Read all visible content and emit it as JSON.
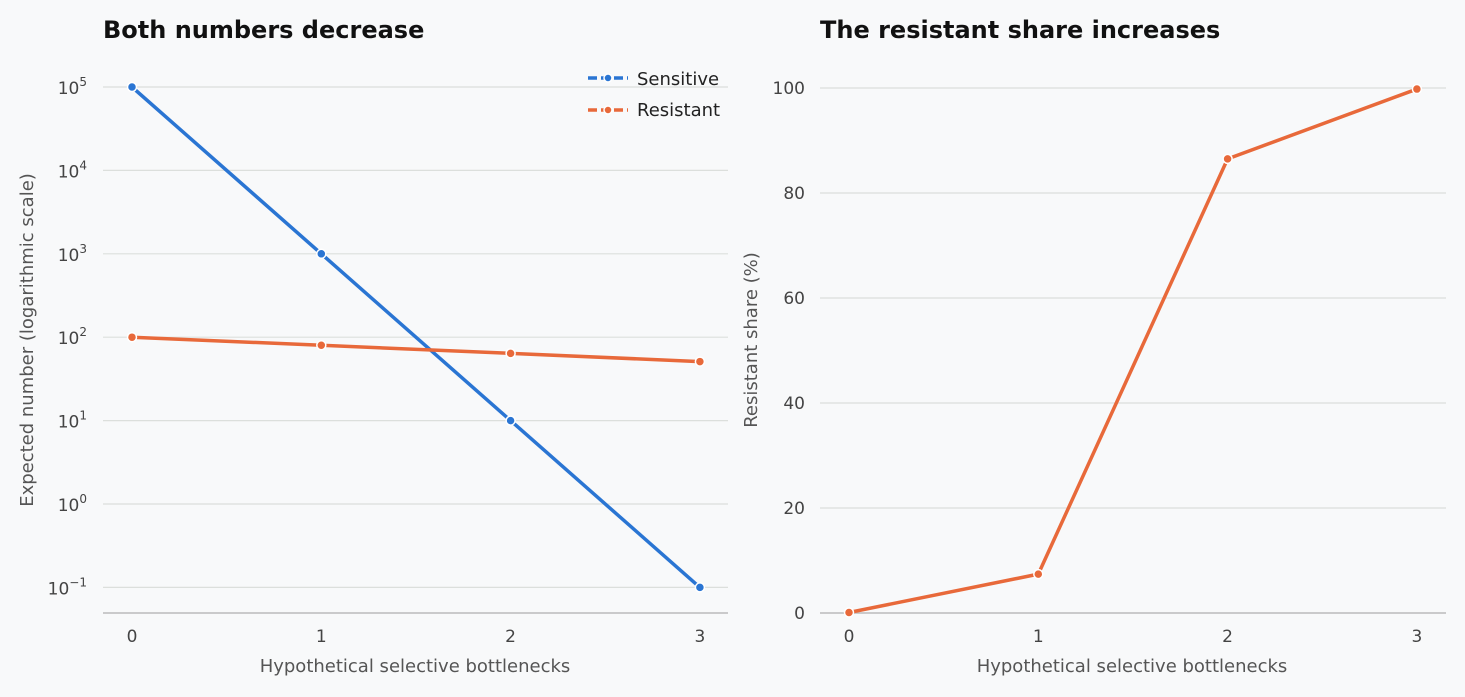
{
  "chart_data": [
    {
      "type": "line",
      "title": "Both numbers decrease",
      "xlabel": "Hypothetical selective bottlenecks",
      "ylabel": "Expected number (logarithmic scale)",
      "y_scale": "log",
      "x": [
        0,
        1,
        2,
        3
      ],
      "x_tick_labels": [
        "0",
        "1",
        "2",
        "3"
      ],
      "y_ticks": [
        {
          "base": "10",
          "exp": "5"
        },
        {
          "base": "10",
          "exp": "4"
        },
        {
          "base": "10",
          "exp": "3"
        },
        {
          "base": "10",
          "exp": "2"
        },
        {
          "base": "10",
          "exp": "1"
        },
        {
          "base": "10",
          "exp": "0"
        },
        {
          "base": "10",
          "exp": "−1"
        }
      ],
      "y_tick_values": [
        100000,
        10000,
        1000,
        100,
        10,
        1,
        0.1
      ],
      "ylim": [
        0.05,
        100000
      ],
      "grid": true,
      "legend_position": "top-right",
      "series": [
        {
          "name": "Sensitive",
          "color": "#2a75d3",
          "values": [
            100000,
            1000,
            10,
            0.1
          ]
        },
        {
          "name": "Resistant",
          "color": "#e8693a",
          "values": [
            100,
            80,
            64,
            51
          ]
        }
      ]
    },
    {
      "type": "line",
      "title": "The resistant share increases",
      "xlabel": "Hypothetical selective bottlenecks",
      "ylabel": "Resistant share (%)",
      "x": [
        0,
        1,
        2,
        3
      ],
      "x_tick_labels": [
        "0",
        "1",
        "2",
        "3"
      ],
      "y_tick_labels": [
        "0",
        "20",
        "40",
        "60",
        "80",
        "100"
      ],
      "y_tick_values": [
        0,
        20,
        40,
        60,
        80,
        100
      ],
      "ylim": [
        0,
        100
      ],
      "grid": true,
      "series": [
        {
          "color": "#e8693a",
          "values": [
            0.1,
            7.4,
            86.5,
            99.8
          ]
        }
      ]
    }
  ]
}
